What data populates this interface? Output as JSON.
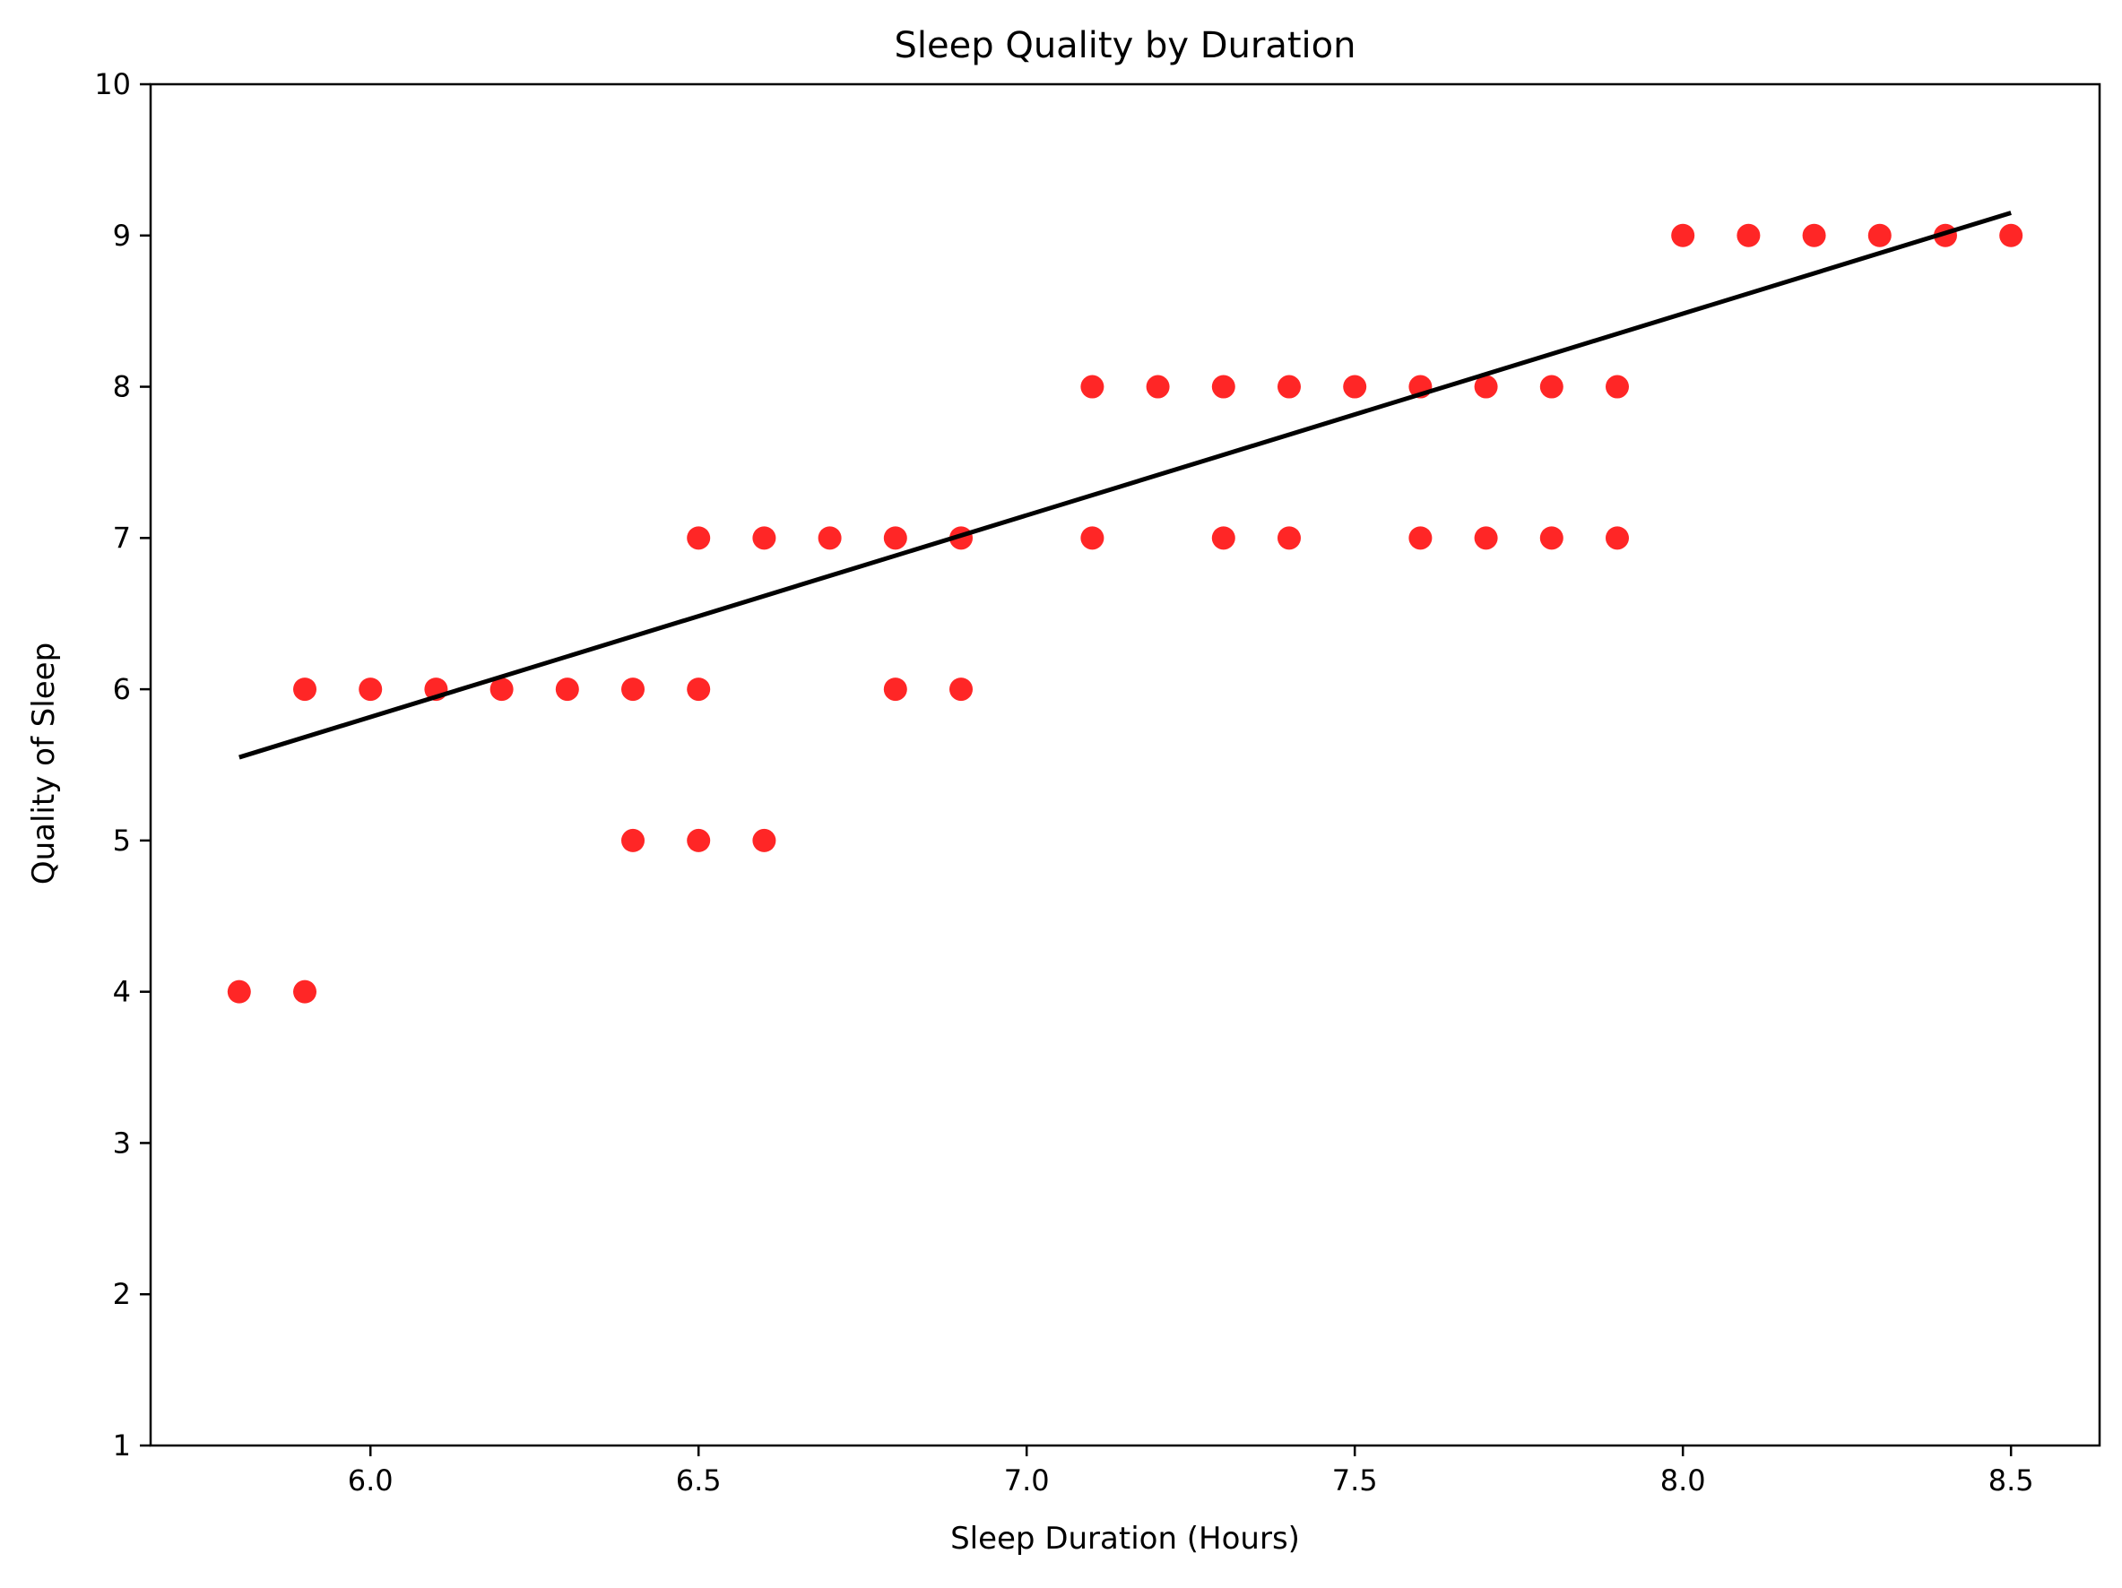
{
  "chart_data": {
    "type": "scatter",
    "title": "Sleep Quality by Duration",
    "xlabel": "Sleep Duration (Hours)",
    "ylabel": "Quality of Sleep",
    "xlim": [
      5.665,
      8.635
    ],
    "ylim": [
      1,
      10
    ],
    "xticks": [
      6.0,
      6.5,
      7.0,
      7.5,
      8.0,
      8.5
    ],
    "xtick_labels": [
      "6.0",
      "6.5",
      "7.0",
      "7.5",
      "8.0",
      "8.5"
    ],
    "yticks": [
      1,
      2,
      3,
      4,
      5,
      6,
      7,
      8,
      9,
      10
    ],
    "ytick_labels": [
      "1",
      "2",
      "3",
      "4",
      "5",
      "6",
      "7",
      "8",
      "9",
      "10"
    ],
    "grid": false,
    "series": [
      {
        "kind": "scatter",
        "color": "#ff0000",
        "points": [
          {
            "x": 5.8,
            "y": 4
          },
          {
            "x": 5.9,
            "y": 4
          },
          {
            "x": 5.9,
            "y": 6
          },
          {
            "x": 6.0,
            "y": 6
          },
          {
            "x": 6.1,
            "y": 6
          },
          {
            "x": 6.2,
            "y": 6
          },
          {
            "x": 6.3,
            "y": 6
          },
          {
            "x": 6.4,
            "y": 6
          },
          {
            "x": 6.4,
            "y": 5
          },
          {
            "x": 6.5,
            "y": 7
          },
          {
            "x": 6.5,
            "y": 6
          },
          {
            "x": 6.5,
            "y": 5
          },
          {
            "x": 6.6,
            "y": 7
          },
          {
            "x": 6.6,
            "y": 5
          },
          {
            "x": 6.7,
            "y": 7
          },
          {
            "x": 6.8,
            "y": 7
          },
          {
            "x": 6.8,
            "y": 6
          },
          {
            "x": 6.9,
            "y": 7
          },
          {
            "x": 6.9,
            "y": 6
          },
          {
            "x": 7.1,
            "y": 8
          },
          {
            "x": 7.1,
            "y": 7
          },
          {
            "x": 7.2,
            "y": 8
          },
          {
            "x": 7.3,
            "y": 8
          },
          {
            "x": 7.3,
            "y": 7
          },
          {
            "x": 7.4,
            "y": 8
          },
          {
            "x": 7.4,
            "y": 7
          },
          {
            "x": 7.5,
            "y": 8
          },
          {
            "x": 7.6,
            "y": 8
          },
          {
            "x": 7.6,
            "y": 7
          },
          {
            "x": 7.7,
            "y": 8
          },
          {
            "x": 7.7,
            "y": 7
          },
          {
            "x": 7.8,
            "y": 8
          },
          {
            "x": 7.8,
            "y": 7
          },
          {
            "x": 7.9,
            "y": 8
          },
          {
            "x": 7.9,
            "y": 7
          },
          {
            "x": 8.0,
            "y": 9
          },
          {
            "x": 8.1,
            "y": 9
          },
          {
            "x": 8.2,
            "y": 9
          },
          {
            "x": 8.3,
            "y": 9
          },
          {
            "x": 8.4,
            "y": 9
          },
          {
            "x": 8.5,
            "y": 9
          }
        ]
      },
      {
        "kind": "line",
        "color": "#000000",
        "x": [
          5.8,
          8.5
        ],
        "y": [
          5.55,
          9.15
        ]
      }
    ]
  }
}
